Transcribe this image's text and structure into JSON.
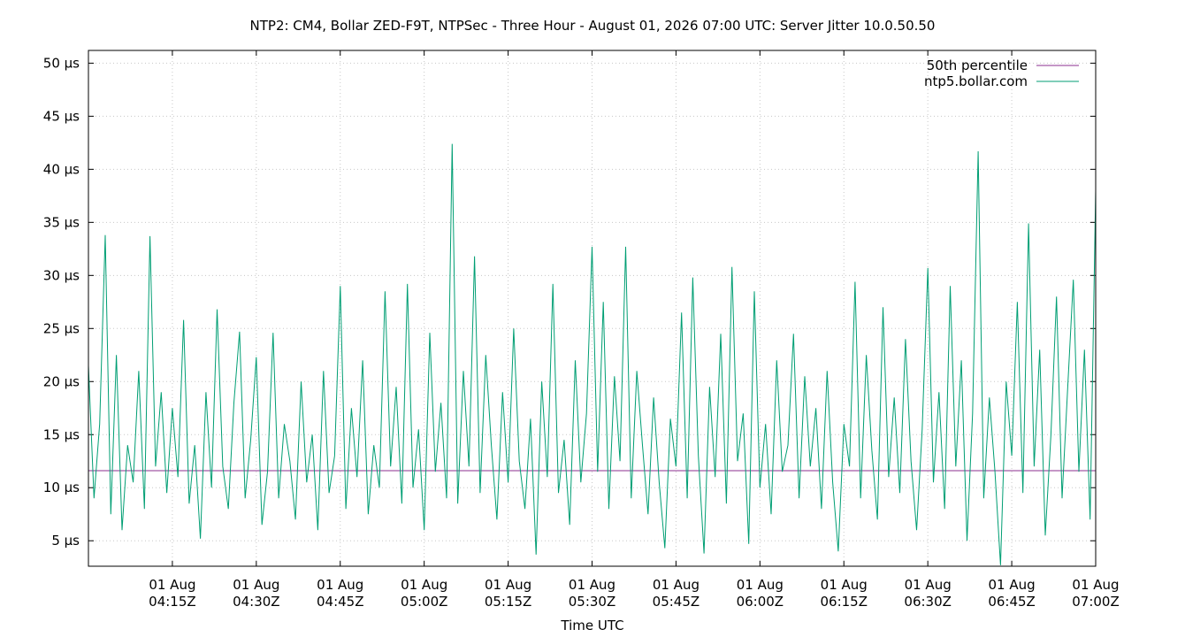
{
  "chart_data": {
    "type": "line",
    "title": "NTP2: CM4, Bollar ZED-F9T, NTPSec - Three Hour - August 01, 2026 07:00 UTC: Server Jitter 10.0.50.50",
    "xlabel": "Time UTC",
    "ylabel": "",
    "x_range": [
      "2026-08-01T04:00Z",
      "2026-08-01T07:00Z"
    ],
    "ylim": [
      2.6,
      51.2
    ],
    "y_unit": "µs",
    "y_ticks": [
      {
        "value": 5,
        "label": "5 µs"
      },
      {
        "value": 10,
        "label": "10 µs"
      },
      {
        "value": 15,
        "label": "15 µs"
      },
      {
        "value": 20,
        "label": "20 µs"
      },
      {
        "value": 25,
        "label": "25 µs"
      },
      {
        "value": 30,
        "label": "30 µs"
      },
      {
        "value": 35,
        "label": "35 µs"
      },
      {
        "value": 40,
        "label": "40 µs"
      },
      {
        "value": 45,
        "label": "45 µs"
      },
      {
        "value": 50,
        "label": "50 µs"
      }
    ],
    "x_ticks": [
      {
        "value": "2026-08-01T04:15Z",
        "line1": "01 Aug",
        "line2": "04:15Z"
      },
      {
        "value": "2026-08-01T04:30Z",
        "line1": "01 Aug",
        "line2": "04:30Z"
      },
      {
        "value": "2026-08-01T04:45Z",
        "line1": "01 Aug",
        "line2": "04:45Z"
      },
      {
        "value": "2026-08-01T05:00Z",
        "line1": "01 Aug",
        "line2": "05:00Z"
      },
      {
        "value": "2026-08-01T05:15Z",
        "line1": "01 Aug",
        "line2": "05:15Z"
      },
      {
        "value": "2026-08-01T05:30Z",
        "line1": "01 Aug",
        "line2": "05:30Z"
      },
      {
        "value": "2026-08-01T05:45Z",
        "line1": "01 Aug",
        "line2": "05:45Z"
      },
      {
        "value": "2026-08-01T06:00Z",
        "line1": "01 Aug",
        "line2": "06:00Z"
      },
      {
        "value": "2026-08-01T06:15Z",
        "line1": "01 Aug",
        "line2": "06:15Z"
      },
      {
        "value": "2026-08-01T06:30Z",
        "line1": "01 Aug",
        "line2": "06:30Z"
      },
      {
        "value": "2026-08-01T06:45Z",
        "line1": "01 Aug",
        "line2": "06:45Z"
      },
      {
        "value": "2026-08-01T07:00Z",
        "line1": "01 Aug",
        "line2": "07:00Z"
      }
    ],
    "grid": true,
    "legend_position": "top-right",
    "series": [
      {
        "name": "50th percentile",
        "color": "#8b2f8f",
        "constant": 11.6
      },
      {
        "name": "ntp5.bollar.com",
        "color": "#009e73",
        "points": [
          [
            "04:00",
            21.5
          ],
          [
            "04:01",
            9.0
          ],
          [
            "04:02",
            16.0
          ],
          [
            "04:03",
            33.8
          ],
          [
            "04:04",
            7.5
          ],
          [
            "04:05",
            22.5
          ],
          [
            "04:06",
            6.0
          ],
          [
            "04:07",
            14.0
          ],
          [
            "04:08",
            10.5
          ],
          [
            "04:09",
            21.0
          ],
          [
            "04:10",
            8.0
          ],
          [
            "04:11",
            33.7
          ],
          [
            "04:12",
            12.0
          ],
          [
            "04:13",
            19.0
          ],
          [
            "04:14",
            9.5
          ],
          [
            "04:15",
            17.5
          ],
          [
            "04:16",
            11.0
          ],
          [
            "04:17",
            25.8
          ],
          [
            "04:18",
            8.5
          ],
          [
            "04:19",
            14.0
          ],
          [
            "04:20",
            5.2
          ],
          [
            "04:21",
            19.0
          ],
          [
            "04:22",
            10.0
          ],
          [
            "04:23",
            26.8
          ],
          [
            "04:24",
            12.0
          ],
          [
            "04:25",
            8.0
          ],
          [
            "04:26",
            18.0
          ],
          [
            "04:27",
            24.7
          ],
          [
            "04:28",
            9.0
          ],
          [
            "04:29",
            14.5
          ],
          [
            "04:30",
            22.3
          ],
          [
            "04:31",
            6.5
          ],
          [
            "04:32",
            11.5
          ],
          [
            "04:33",
            24.6
          ],
          [
            "04:34",
            9.0
          ],
          [
            "04:35",
            16.0
          ],
          [
            "04:36",
            12.5
          ],
          [
            "04:37",
            7.0
          ],
          [
            "04:38",
            20.0
          ],
          [
            "04:39",
            10.5
          ],
          [
            "04:40",
            15.0
          ],
          [
            "04:41",
            6.0
          ],
          [
            "04:42",
            21.0
          ],
          [
            "04:43",
            9.5
          ],
          [
            "04:44",
            13.0
          ],
          [
            "04:45",
            29.0
          ],
          [
            "04:46",
            8.0
          ],
          [
            "04:47",
            17.5
          ],
          [
            "04:48",
            11.0
          ],
          [
            "04:49",
            22.0
          ],
          [
            "04:50",
            7.5
          ],
          [
            "04:51",
            14.0
          ],
          [
            "04:52",
            10.0
          ],
          [
            "04:53",
            28.5
          ],
          [
            "04:54",
            12.0
          ],
          [
            "04:55",
            19.5
          ],
          [
            "04:56",
            8.5
          ],
          [
            "04:57",
            29.2
          ],
          [
            "04:58",
            10.0
          ],
          [
            "04:59",
            15.5
          ],
          [
            "05:00",
            6.0
          ],
          [
            "05:01",
            24.6
          ],
          [
            "05:02",
            11.5
          ],
          [
            "05:03",
            18.0
          ],
          [
            "05:04",
            9.0
          ],
          [
            "05:05",
            42.4
          ],
          [
            "05:06",
            8.5
          ],
          [
            "05:07",
            21.0
          ],
          [
            "05:08",
            12.0
          ],
          [
            "05:09",
            31.8
          ],
          [
            "05:10",
            9.5
          ],
          [
            "05:11",
            22.5
          ],
          [
            "05:12",
            14.0
          ],
          [
            "05:13",
            7.0
          ],
          [
            "05:14",
            19.0
          ],
          [
            "05:15",
            10.5
          ],
          [
            "05:16",
            25.0
          ],
          [
            "05:17",
            12.5
          ],
          [
            "05:18",
            8.0
          ],
          [
            "05:19",
            16.5
          ],
          [
            "05:20",
            3.7
          ],
          [
            "05:21",
            20.0
          ],
          [
            "05:22",
            11.0
          ],
          [
            "05:23",
            29.2
          ],
          [
            "05:24",
            9.5
          ],
          [
            "05:25",
            14.5
          ],
          [
            "05:26",
            6.5
          ],
          [
            "05:27",
            22.0
          ],
          [
            "05:28",
            10.5
          ],
          [
            "05:29",
            17.0
          ],
          [
            "05:30",
            32.7
          ],
          [
            "05:31",
            11.5
          ],
          [
            "05:32",
            27.5
          ],
          [
            "05:33",
            8.0
          ],
          [
            "05:34",
            20.5
          ],
          [
            "05:35",
            12.5
          ],
          [
            "05:36",
            32.7
          ],
          [
            "05:37",
            9.0
          ],
          [
            "05:38",
            21.0
          ],
          [
            "05:39",
            14.0
          ],
          [
            "05:40",
            7.5
          ],
          [
            "05:41",
            18.5
          ],
          [
            "05:42",
            10.5
          ],
          [
            "05:43",
            4.3
          ],
          [
            "05:44",
            16.5
          ],
          [
            "05:45",
            12.0
          ],
          [
            "05:46",
            26.5
          ],
          [
            "05:47",
            9.0
          ],
          [
            "05:48",
            29.8
          ],
          [
            "05:49",
            13.0
          ],
          [
            "05:50",
            3.8
          ],
          [
            "05:51",
            19.5
          ],
          [
            "05:52",
            11.0
          ],
          [
            "05:53",
            24.5
          ],
          [
            "05:54",
            8.5
          ],
          [
            "05:55",
            30.8
          ],
          [
            "05:56",
            12.5
          ],
          [
            "05:57",
            17.0
          ],
          [
            "05:58",
            4.7
          ],
          [
            "05:59",
            28.5
          ],
          [
            "06:00",
            10.0
          ],
          [
            "06:01",
            16.0
          ],
          [
            "06:02",
            7.5
          ],
          [
            "06:03",
            22.0
          ],
          [
            "06:04",
            11.5
          ],
          [
            "06:05",
            14.0
          ],
          [
            "06:06",
            24.5
          ],
          [
            "06:07",
            9.0
          ],
          [
            "06:08",
            20.5
          ],
          [
            "06:09",
            12.0
          ],
          [
            "06:10",
            17.5
          ],
          [
            "06:11",
            8.0
          ],
          [
            "06:12",
            21.0
          ],
          [
            "06:13",
            10.5
          ],
          [
            "06:14",
            4.0
          ],
          [
            "06:15",
            16.0
          ],
          [
            "06:16",
            12.0
          ],
          [
            "06:17",
            29.4
          ],
          [
            "06:18",
            9.0
          ],
          [
            "06:19",
            22.5
          ],
          [
            "06:20",
            13.5
          ],
          [
            "06:21",
            7.0
          ],
          [
            "06:22",
            27.0
          ],
          [
            "06:23",
            11.0
          ],
          [
            "06:24",
            18.5
          ],
          [
            "06:25",
            9.5
          ],
          [
            "06:26",
            24.0
          ],
          [
            "06:27",
            12.5
          ],
          [
            "06:28",
            6.0
          ],
          [
            "06:29",
            15.5
          ],
          [
            "06:30",
            30.7
          ],
          [
            "06:31",
            10.5
          ],
          [
            "06:32",
            19.0
          ],
          [
            "06:33",
            8.0
          ],
          [
            "06:34",
            29.0
          ],
          [
            "06:35",
            12.0
          ],
          [
            "06:36",
            22.0
          ],
          [
            "06:37",
            5.0
          ],
          [
            "06:38",
            17.0
          ],
          [
            "06:39",
            41.7
          ],
          [
            "06:40",
            9.0
          ],
          [
            "06:41",
            18.5
          ],
          [
            "06:42",
            11.5
          ],
          [
            "06:43",
            2.7
          ],
          [
            "06:44",
            20.0
          ],
          [
            "06:45",
            13.0
          ],
          [
            "06:46",
            27.5
          ],
          [
            "06:47",
            9.5
          ],
          [
            "06:48",
            34.9
          ],
          [
            "06:49",
            12.0
          ],
          [
            "06:50",
            23.0
          ],
          [
            "06:51",
            5.5
          ],
          [
            "06:52",
            15.0
          ],
          [
            "06:53",
            28.0
          ],
          [
            "06:54",
            9.0
          ],
          [
            "06:55",
            19.5
          ],
          [
            "06:56",
            29.6
          ],
          [
            "06:57",
            11.5
          ],
          [
            "06:58",
            23.0
          ],
          [
            "06:59",
            7.0
          ],
          [
            "07:00",
            38.0
          ]
        ]
      }
    ]
  }
}
